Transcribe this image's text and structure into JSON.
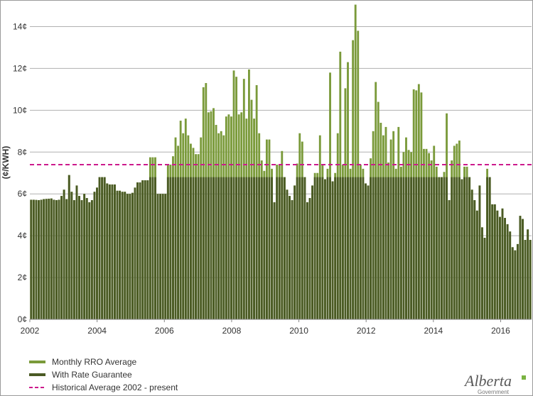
{
  "chart_data": {
    "type": "bar",
    "ylabel": "(¢/KWH)",
    "ylim": [
      0,
      15
    ],
    "yticks": [
      {
        "value": 0,
        "label": "0¢"
      },
      {
        "value": 2,
        "label": "2¢"
      },
      {
        "value": 4,
        "label": "4¢"
      },
      {
        "value": 6,
        "label": "6¢"
      },
      {
        "value": 8,
        "label": "8¢"
      },
      {
        "value": 10,
        "label": "10¢"
      },
      {
        "value": 12,
        "label": "12¢"
      },
      {
        "value": 14,
        "label": "14¢"
      }
    ],
    "xlim": [
      2002,
      2016.92
    ],
    "xticks": [
      {
        "value": 2002,
        "label": "2002"
      },
      {
        "value": 2004,
        "label": "2004"
      },
      {
        "value": 2006,
        "label": "2006"
      },
      {
        "value": 2008,
        "label": "2008"
      },
      {
        "value": 2010,
        "label": "2010"
      },
      {
        "value": 2012,
        "label": "2012"
      },
      {
        "value": 2014,
        "label": "2014"
      },
      {
        "value": 2016,
        "label": "2016"
      }
    ],
    "grid": true,
    "start": "2002-01",
    "series": [
      {
        "name": "Monthly RRO Average",
        "color": "#7a9a3a",
        "values": [
          5.72,
          5.72,
          5.71,
          5.7,
          5.72,
          5.75,
          5.76,
          5.77,
          5.78,
          5.72,
          5.7,
          5.72,
          5.9,
          6.2,
          5.75,
          6.9,
          6.1,
          5.7,
          6.4,
          5.9,
          5.7,
          6.0,
          5.8,
          5.6,
          5.7,
          6.1,
          6.3,
          6.8,
          6.8,
          6.8,
          6.5,
          6.45,
          6.45,
          6.45,
          6.15,
          6.15,
          6.1,
          6.1,
          6.0,
          6.0,
          6.05,
          6.3,
          6.55,
          6.55,
          6.65,
          6.65,
          6.65,
          7.75,
          7.75,
          7.75,
          6.0,
          6.0,
          6.0,
          6.0,
          7.4,
          7.4,
          7.8,
          8.7,
          8.3,
          9.5,
          8.9,
          9.6,
          8.8,
          8.4,
          8.2,
          7.9,
          7.9,
          8.7,
          11.1,
          11.3,
          9.9,
          9.95,
          10.1,
          9.3,
          8.9,
          9.0,
          8.8,
          9.7,
          9.8,
          9.7,
          11.9,
          11.6,
          9.8,
          9.9,
          11.5,
          9.6,
          11.95,
          10.5,
          9.6,
          11.2,
          8.9,
          7.6,
          7.1,
          8.6,
          8.6,
          7.2,
          5.6,
          7.4,
          7.4,
          8.05,
          6.8,
          6.2,
          5.9,
          5.7,
          6.4,
          7.45,
          8.9,
          8.5,
          6.8,
          5.6,
          5.8,
          6.4,
          7.0,
          7.0,
          8.8,
          7.4,
          6.7,
          7.2,
          11.8,
          6.6,
          7.0,
          8.9,
          12.8,
          7.4,
          11.05,
          12.3,
          7.2,
          13.35,
          15.05,
          13.8,
          7.4,
          7.2,
          6.5,
          6.4,
          7.7,
          9.0,
          11.35,
          10.4,
          9.4,
          8.8,
          9.2,
          7.5,
          8.6,
          9.0,
          7.2,
          9.2,
          7.3,
          8.0,
          8.7,
          8.1,
          8.0,
          11.0,
          10.95,
          11.25,
          10.85,
          8.15,
          8.15,
          7.95,
          7.6,
          8.3,
          7.3,
          6.8,
          6.8,
          7.05,
          9.85,
          5.7,
          7.6,
          8.3,
          8.4,
          8.55,
          6.7,
          7.3,
          7.3,
          6.8,
          6.2,
          5.7,
          5.2,
          6.4,
          4.4,
          3.9,
          7.2,
          6.8,
          5.5,
          5.5,
          5.2,
          4.9,
          5.3,
          4.85,
          4.55,
          4.2,
          3.45,
          3.3,
          3.6,
          4.95,
          4.8,
          3.8,
          4.3,
          3.8
        ]
      },
      {
        "name": "With Rate Guarantee",
        "color": "#4a5a24",
        "values": [
          5.72,
          5.72,
          5.71,
          5.7,
          5.72,
          5.75,
          5.76,
          5.77,
          5.78,
          5.72,
          5.7,
          5.72,
          5.9,
          6.2,
          5.75,
          6.9,
          6.1,
          5.7,
          6.4,
          5.9,
          5.7,
          6.0,
          5.8,
          5.6,
          5.7,
          6.1,
          6.3,
          6.8,
          6.8,
          6.8,
          6.5,
          6.45,
          6.45,
          6.45,
          6.15,
          6.15,
          6.1,
          6.1,
          6.0,
          6.0,
          6.05,
          6.3,
          6.55,
          6.55,
          6.65,
          6.65,
          6.65,
          6.8,
          6.8,
          6.8,
          6.0,
          6.0,
          6.0,
          6.0,
          6.8,
          6.8,
          6.8,
          6.8,
          6.8,
          6.8,
          6.8,
          6.8,
          6.8,
          6.8,
          6.8,
          6.8,
          6.8,
          6.8,
          6.8,
          6.8,
          6.8,
          6.8,
          6.8,
          6.8,
          6.8,
          6.8,
          6.8,
          6.8,
          6.8,
          6.8,
          6.8,
          6.8,
          6.8,
          6.8,
          6.8,
          6.8,
          6.8,
          6.8,
          6.8,
          6.8,
          6.8,
          6.8,
          6.8,
          6.8,
          6.8,
          6.8,
          5.6,
          6.8,
          6.8,
          6.8,
          6.8,
          6.2,
          5.9,
          5.7,
          6.4,
          6.8,
          6.8,
          6.8,
          6.8,
          5.6,
          5.8,
          6.4,
          6.8,
          6.8,
          6.8,
          6.8,
          6.7,
          6.8,
          6.8,
          6.6,
          6.8,
          6.8,
          6.8,
          6.8,
          6.8,
          6.8,
          6.8,
          6.8,
          6.8,
          6.8,
          6.8,
          6.8,
          6.5,
          6.4,
          6.8,
          6.8,
          6.8,
          6.8,
          6.8,
          6.8,
          6.8,
          6.8,
          6.8,
          6.8,
          6.8,
          6.8,
          6.8,
          6.8,
          6.8,
          6.8,
          6.8,
          6.8,
          6.8,
          6.8,
          6.8,
          6.8,
          6.8,
          6.8,
          6.8,
          6.8,
          6.8,
          6.8,
          6.8,
          6.8,
          6.8,
          5.7,
          6.8,
          6.8,
          6.8,
          6.8,
          6.7,
          6.8,
          6.8,
          6.8,
          6.2,
          5.7,
          5.2,
          6.4,
          4.4,
          3.9,
          6.8,
          6.8,
          5.5,
          5.5,
          5.2,
          4.9,
          5.3,
          4.85,
          4.55,
          4.2,
          3.45,
          3.3,
          3.6,
          4.95,
          4.8,
          3.8,
          4.3,
          3.8
        ]
      }
    ],
    "reference_line": {
      "name": "Historical Average 2002 - present",
      "value": 7.4,
      "color": "#cc1a8c",
      "style": "dashed"
    },
    "legend": {
      "position": "bottom-left",
      "items": [
        {
          "label": "Monthly RRO Average",
          "color": "#7a9a3a",
          "kind": "bar"
        },
        {
          "label": "With Rate Guarantee",
          "color": "#4a5a24",
          "kind": "bar"
        },
        {
          "label": "Historical Average 2002 - present",
          "color": "#cc1a8c",
          "kind": "dashed-line"
        }
      ]
    }
  },
  "logo": {
    "wordmark": "Alberta",
    "tagline": "Government",
    "accent": "#7ab342"
  }
}
